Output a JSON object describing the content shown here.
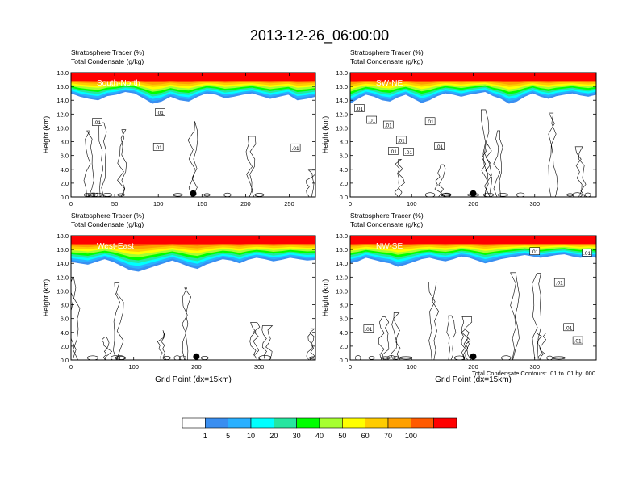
{
  "figure": {
    "title": "2013-12-26_06:00:00",
    "footnote": "Total Condensate Contours: .01 to .01 by .000",
    "palette": [
      "#ffffff",
      "#3a8ef0",
      "#2ab0ff",
      "#00ffff",
      "#26e6a0",
      "#00ff00",
      "#a6ff30",
      "#ffff00",
      "#ffcc00",
      "#ffa000",
      "#ff5a00",
      "#ff0000"
    ]
  },
  "chart_data": [
    {
      "type": "heatmap",
      "name": "south-north",
      "label": "South-North",
      "title_line1": "Stratosphere Tracer   (%)",
      "title_line2": "Total Condensate   (g/kg)",
      "ylabel": "Height (km)",
      "xlabel": "",
      "xlim": [
        0,
        280
      ],
      "ylim": [
        0,
        18
      ],
      "xticks": [
        0,
        50,
        100,
        150,
        200,
        250
      ],
      "yticks": [
        0,
        2,
        4,
        6,
        8,
        10,
        12,
        14,
        16,
        18
      ],
      "marker_x": 140,
      "tracer_top_km": [
        15.0,
        14.5,
        14.2,
        14.0,
        14.6,
        14.8,
        15.2,
        15.0,
        14.3,
        13.5,
        13.8,
        14.5,
        14.0,
        13.8,
        14.5,
        15.0,
        14.8,
        14.3,
        14.5,
        14.8,
        15.0,
        14.6,
        14.2,
        14.5,
        14.8,
        14.0,
        14.2,
        14.5
      ],
      "contour_labels": [
        {
          "x": 30,
          "y": 10.8,
          "t": ".01"
        },
        {
          "x": 102,
          "y": 12.2,
          "t": ".01"
        },
        {
          "x": 100,
          "y": 7.2,
          "t": ".01"
        },
        {
          "x": 257,
          "y": 7.1,
          "t": ".01"
        }
      ]
    },
    {
      "type": "heatmap",
      "name": "sw-ne",
      "label": "SW-NE",
      "title_line1": "Stratosphere Tracer   (%)",
      "title_line2": "Total Condensate   (g/kg)",
      "ylabel": "Height (km)",
      "xlabel": "",
      "xlim": [
        0,
        400
      ],
      "ylim": [
        0,
        18
      ],
      "xticks": [
        0,
        100,
        200,
        300
      ],
      "yticks": [
        0,
        2,
        4,
        6,
        8,
        10,
        12,
        14,
        16,
        18
      ],
      "marker_x": 200,
      "tracer_top_km": [
        13.5,
        14.2,
        14.8,
        14.5,
        14.0,
        13.8,
        14.4,
        14.8,
        14.2,
        13.6,
        14.0,
        14.6,
        15.0,
        14.8,
        14.5,
        14.8,
        15.0,
        15.2,
        14.6,
        14.2,
        13.5,
        13.8,
        14.5,
        15.0,
        14.5,
        14.2,
        14.6,
        14.8,
        15.0,
        14.7,
        14.5,
        14.8
      ],
      "contour_labels": [
        {
          "x": 15,
          "y": 12.8,
          "t": ".01"
        },
        {
          "x": 35,
          "y": 11.1,
          "t": ".01"
        },
        {
          "x": 62,
          "y": 10.4,
          "t": ".01"
        },
        {
          "x": 83,
          "y": 8.2,
          "t": ".01"
        },
        {
          "x": 70,
          "y": 6.6,
          "t": ".01"
        },
        {
          "x": 95,
          "y": 6.5,
          "t": ".01"
        },
        {
          "x": 130,
          "y": 10.9,
          "t": ".01"
        },
        {
          "x": 145,
          "y": 7.3,
          "t": ".01"
        }
      ]
    },
    {
      "type": "heatmap",
      "name": "west-east",
      "label": "West-East",
      "title_line1": "Stratosphere Tracer   (%)",
      "title_line2": "Total Condensate   (g/kg)",
      "ylabel": "Height (km)",
      "xlabel": "Grid Point (dx=15km)",
      "xlim": [
        0,
        390
      ],
      "ylim": [
        0,
        18
      ],
      "xticks": [
        0,
        100,
        200,
        300
      ],
      "yticks": [
        0,
        2,
        4,
        6,
        8,
        10,
        12,
        14,
        16,
        18
      ],
      "marker_x": 200,
      "tracer_top_km": [
        14.2,
        14.0,
        13.8,
        14.2,
        14.6,
        14.2,
        13.6,
        13.0,
        12.8,
        13.2,
        13.6,
        14.0,
        14.4,
        14.0,
        13.5,
        13.2,
        13.8,
        14.2,
        14.6,
        14.4,
        14.0,
        14.5,
        14.8,
        14.6,
        14.3,
        14.5,
        14.8,
        14.6,
        14.4,
        14.5
      ],
      "contour_labels": []
    },
    {
      "type": "heatmap",
      "name": "nw-se",
      "label": "NW-SE",
      "title_line1": "Stratosphere Tracer   (%)",
      "title_line2": "Total Condensate   (g/kg)",
      "ylabel": "Height (km)",
      "xlabel": "Grid Point (dx=15km)",
      "xlim": [
        0,
        400
      ],
      "ylim": [
        0,
        18
      ],
      "xticks": [
        0,
        100,
        200,
        300
      ],
      "yticks": [
        0,
        2,
        4,
        6,
        8,
        10,
        12,
        14,
        16,
        18
      ],
      "marker_x": 200,
      "tracer_top_km": [
        14.0,
        14.3,
        14.8,
        14.5,
        14.2,
        14.0,
        13.5,
        13.8,
        14.2,
        14.6,
        14.8,
        14.5,
        14.3,
        14.6,
        15.0,
        14.8,
        14.4,
        14.0,
        14.3,
        14.6,
        14.8,
        15.0,
        15.2,
        15.0,
        14.8,
        15.0,
        15.2,
        15.3,
        15.0,
        14.8,
        15.0,
        14.8
      ],
      "contour_labels": [
        {
          "x": 30,
          "y": 4.5,
          "t": ".01"
        },
        {
          "x": 300,
          "y": 15.7,
          "t": ".01"
        },
        {
          "x": 385,
          "y": 15.5,
          "t": ".01"
        },
        {
          "x": 340,
          "y": 11.2,
          "t": ".01"
        },
        {
          "x": 355,
          "y": 4.7,
          "t": ".01"
        },
        {
          "x": 370,
          "y": 2.8,
          "t": ".01"
        }
      ]
    }
  ],
  "colorbar": {
    "labels": [
      "1",
      "5",
      "10",
      "20",
      "30",
      "40",
      "50",
      "60",
      "70",
      "100"
    ],
    "colors": [
      "#ffffff",
      "#3a8ef0",
      "#2ab0ff",
      "#00ffff",
      "#26e6a0",
      "#00ff00",
      "#a6ff30",
      "#ffff00",
      "#ffcc00",
      "#ffa000",
      "#ff5a00",
      "#ff0000"
    ]
  }
}
